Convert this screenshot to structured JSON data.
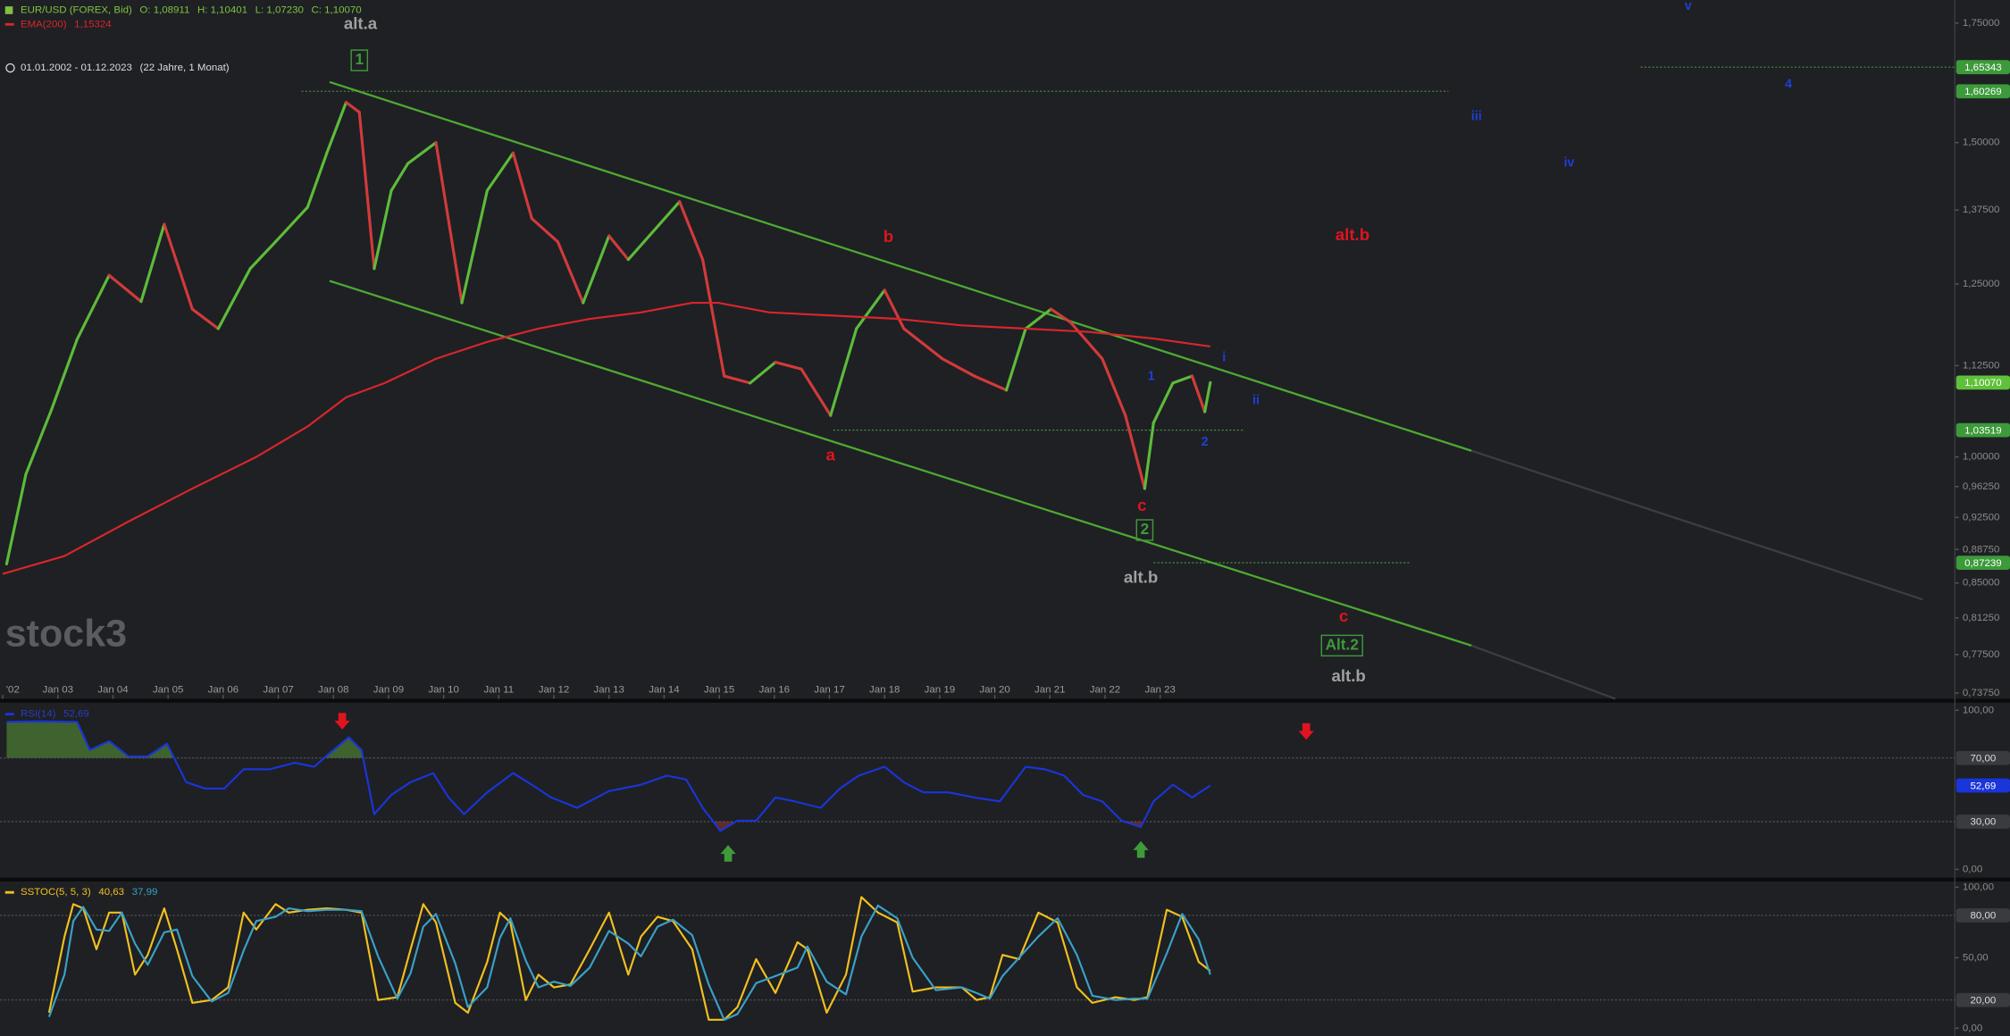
{
  "chart_data": [
    {
      "type": "line",
      "log": true,
      "instrument_ohlc": [
        "O: 1,08911",
        "H: 1,10401",
        "L: 1,07230",
        "C: 1,10070"
      ],
      "period": "01.01.2002 - 01.12.2023",
      "period_note": "(22 Jahre, 1 Monat)",
      "watermark": "stock3",
      "xlim": [
        2001.95,
        2037.42
      ],
      "xticks": [
        {
          "value": 2002,
          "label": "'02"
        },
        {
          "value": 2003,
          "label": "Jan 03"
        },
        {
          "value": 2004,
          "label": "Jan 04"
        },
        {
          "value": 2005,
          "label": "Jan 05"
        },
        {
          "value": 2006,
          "label": "Jan 06"
        },
        {
          "value": 2007,
          "label": "Jan 07"
        },
        {
          "value": 2008,
          "label": "Jan 08"
        },
        {
          "value": 2009,
          "label": "Jan 09"
        },
        {
          "value": 2010,
          "label": "Jan 10"
        },
        {
          "value": 2011,
          "label": "Jan 11"
        },
        {
          "value": 2012,
          "label": "Jan 12"
        },
        {
          "value": 2013,
          "label": "Jan 13"
        },
        {
          "value": 2014,
          "label": "Jan 14"
        },
        {
          "value": 2015,
          "label": "Jan 15"
        },
        {
          "value": 2016,
          "label": "Jan 16"
        },
        {
          "value": 2017,
          "label": "Jan 17"
        },
        {
          "value": 2018,
          "label": "Jan 18"
        },
        {
          "value": 2019,
          "label": "Jan 19"
        },
        {
          "value": 2020,
          "label": "Jan 20"
        },
        {
          "value": 2021,
          "label": "Jan 21"
        },
        {
          "value": 2022,
          "label": "Jan 22"
        },
        {
          "value": 2023,
          "label": "Jan 23"
        }
      ],
      "ylim": [
        0.732,
        1.803
      ],
      "yticks": [
        {
          "value": 1.75,
          "label": "1,75000"
        },
        {
          "value": 1.5,
          "label": "1,50000"
        },
        {
          "value": 1.375,
          "label": "1,37500"
        },
        {
          "value": 1.25,
          "label": "1,25000"
        },
        {
          "value": 1.125,
          "label": "1,12500"
        },
        {
          "value": 1.0,
          "label": "1,00000"
        },
        {
          "value": 0.9625,
          "label": "0,96250"
        },
        {
          "value": 0.925,
          "label": "0,92500"
        },
        {
          "value": 0.8875,
          "label": "0,88750"
        },
        {
          "value": 0.85,
          "label": "0,85000"
        },
        {
          "value": 0.8125,
          "label": "0,81250"
        },
        {
          "value": 0.775,
          "label": "0,77500"
        },
        {
          "value": 0.7375,
          "label": "0,73750"
        }
      ],
      "series": [
        {
          "name": "EUR/USD (FOREX, Bid)",
          "color": "#7fc241",
          "up_color": "#5dbb3a",
          "down_color": "#d23a3a",
          "x": [
            2002.07,
            2002.42,
            2002.88,
            2003.35,
            2003.93,
            2004.51,
            2004.93,
            2005.44,
            2005.91,
            2006.49,
            2006.95,
            2007.53,
            2007.88,
            2008.23,
            2008.47,
            2008.74,
            2009.05,
            2009.35,
            2009.86,
            2010.33,
            2010.79,
            2011.26,
            2011.6,
            2012.07,
            2012.53,
            2013.0,
            2013.35,
            2014.28,
            2014.7,
            2015.09,
            2015.56,
            2016.02,
            2016.49,
            2017.02,
            2017.49,
            2018.0,
            2018.35,
            2019.05,
            2019.63,
            2020.21,
            2020.56,
            2021.02,
            2021.37,
            2021.95,
            2022.37,
            2022.72,
            2022.88,
            2023.23,
            2023.58,
            2023.81,
            2023.91
          ],
          "values": [
            0.871,
            0.978,
            1.062,
            1.164,
            1.264,
            1.222,
            1.35,
            1.21,
            1.18,
            1.275,
            1.32,
            1.38,
            1.48,
            1.58,
            1.56,
            1.275,
            1.41,
            1.46,
            1.5,
            1.22,
            1.41,
            1.48,
            1.36,
            1.32,
            1.22,
            1.33,
            1.29,
            1.39,
            1.29,
            1.11,
            1.1,
            1.13,
            1.12,
            1.055,
            1.18,
            1.24,
            1.18,
            1.135,
            1.11,
            1.09,
            1.18,
            1.21,
            1.19,
            1.135,
            1.055,
            0.96,
            1.045,
            1.1,
            1.11,
            1.06,
            1.1007
          ]
        },
        {
          "name": "EMA(200)",
          "legend_value": "1,15324",
          "color": "#d8262b",
          "x": [
            2002.0,
            2003.12,
            2004.28,
            2005.44,
            2006.6,
            2007.53,
            2008.23,
            2008.93,
            2009.86,
            2010.79,
            2011.72,
            2012.65,
            2013.58,
            2014.51,
            2014.98,
            2015.91,
            2017.07,
            2018.23,
            2019.4,
            2020.56,
            2021.72,
            2022.88,
            2023.91
          ],
          "values": [
            0.86,
            0.88,
            0.92,
            0.96,
            1.0,
            1.04,
            1.08,
            1.1,
            1.135,
            1.16,
            1.18,
            1.195,
            1.205,
            1.22,
            1.22,
            1.205,
            1.2,
            1.195,
            1.185,
            1.18,
            1.175,
            1.165,
            1.15324
          ]
        }
      ],
      "level_color": "#3c9a3a",
      "level_text_color": "#ffffff",
      "level_line_color": "#4f8a3a",
      "levels": [
        {
          "value": 1.65343,
          "label": "1,65343",
          "from": 2031.72
        },
        {
          "value": 1.60269,
          "label": "1,60269",
          "from": 2007.42,
          "to": 2028.23
        },
        {
          "value": 1.03519,
          "label": "1,03519",
          "from": 2017.07,
          "to": 2024.5
        },
        {
          "value": 0.87239,
          "label": "0,87239",
          "from": 2022.88,
          "to": 2027.53
        }
      ],
      "last": {
        "value": 1.1007,
        "label": "1,10070"
      },
      "last_color": "#5fc13a",
      "trendlines": [
        {
          "x": [
            2007.93,
            2028.65
          ],
          "y": [
            1.622,
            1.008
          ],
          "color": "#4ea832"
        },
        {
          "x": [
            2007.93,
            2028.65
          ],
          "y": [
            1.255,
            0.784
          ],
          "color": "#4ea832"
        },
        {
          "x": [
            2028.65,
            2036.84
          ],
          "y": [
            1.008,
            0.832
          ],
          "color": "#3a3d42"
        },
        {
          "x": [
            2028.65,
            2031.26
          ],
          "y": [
            0.784,
            0.732
          ],
          "color": "#3a3d42"
        }
      ],
      "annotations": [
        {
          "text": "alt.a",
          "x": 2008.49,
          "y": 1.747,
          "color": "#a0a0a0"
        },
        {
          "text": "1",
          "x": 2008.47,
          "y": 1.668,
          "color": "#3f9a3a",
          "box": true
        },
        {
          "text": "b",
          "x": 2018.07,
          "y": 1.327,
          "color": "#e0141e"
        },
        {
          "text": "alt.b",
          "x": 2026.49,
          "y": 1.33,
          "color": "#e0141e"
        },
        {
          "text": "a",
          "x": 2017.02,
          "y": 1.001,
          "color": "#e0141e"
        },
        {
          "text": "1",
          "x": 2022.84,
          "y": 1.109,
          "color": "#1f3fd6"
        },
        {
          "text": "2",
          "x": 2023.81,
          "y": 1.019,
          "color": "#1f3fd6"
        },
        {
          "text": "i",
          "x": 2024.16,
          "y": 1.136,
          "color": "#1f3fd6"
        },
        {
          "text": "ii",
          "x": 2024.74,
          "y": 1.075,
          "color": "#1f3fd6"
        },
        {
          "text": "c",
          "x": 2022.67,
          "y": 0.938,
          "color": "#e0141e"
        },
        {
          "text": "2",
          "x": 2022.72,
          "y": 0.91,
          "color": "#3f9a3a",
          "box": true
        },
        {
          "text": "alt.b",
          "x": 2022.65,
          "y": 0.855,
          "color": "#a0a0a0"
        },
        {
          "text": "c",
          "x": 2026.33,
          "y": 0.813,
          "color": "#e0141e"
        },
        {
          "text": "Alt.2",
          "x": 2026.3,
          "y": 0.784,
          "color": "#3f9a3a",
          "box": true
        },
        {
          "text": "alt.b",
          "x": 2026.42,
          "y": 0.753,
          "color": "#a0a0a0"
        },
        {
          "text": "iii",
          "x": 2028.74,
          "y": 1.551,
          "color": "#1f3fd6"
        },
        {
          "text": "iv",
          "x": 2030.42,
          "y": 1.461,
          "color": "#1f3fd6"
        },
        {
          "text": "v",
          "x": 2032.58,
          "y": 1.788,
          "color": "#1f3fd6"
        },
        {
          "text": "4",
          "x": 2034.4,
          "y": 1.617,
          "color": "#1f3fd6"
        }
      ]
    },
    {
      "type": "line",
      "xlim": [
        2001.95,
        2037.42
      ],
      "ylim": [
        -5.6,
        104.8
      ],
      "yticks": [
        {
          "value": 100,
          "label": "100,00"
        },
        {
          "value": 0,
          "label": "0,00"
        }
      ],
      "level_color": "#3a3b3f",
      "level_text_color": "#dddddd",
      "level_line_color": "#55575c",
      "levels": [
        {
          "value": 70,
          "label": "70,00",
          "fill": "#4a7a32",
          "side": "above"
        },
        {
          "value": 30,
          "label": "30,00",
          "fill": "#7a2e2e",
          "side": "below"
        }
      ],
      "last": {
        "value": 52.69,
        "label": "52,69"
      },
      "last_color": "#1a35d8",
      "series": [
        {
          "name": "RSI(14)",
          "legend_value": "52,69",
          "color": "#1a35d8",
          "x": [
            2002.07,
            2002.65,
            2003.35,
            2003.58,
            2003.93,
            2004.28,
            2004.63,
            2004.98,
            2005.33,
            2005.67,
            2006.02,
            2006.37,
            2006.84,
            2007.3,
            2007.65,
            2008.0,
            2008.28,
            2008.51,
            2008.74,
            2009.05,
            2009.4,
            2009.81,
            2010.09,
            2010.37,
            2010.79,
            2011.26,
            2011.6,
            2011.95,
            2012.42,
            2013.0,
            2013.58,
            2014.05,
            2014.4,
            2014.7,
            2015.02,
            2015.33,
            2015.67,
            2016.02,
            2016.37,
            2016.84,
            2017.19,
            2017.53,
            2018.0,
            2018.35,
            2018.7,
            2019.16,
            2019.63,
            2020.09,
            2020.56,
            2020.91,
            2021.26,
            2021.6,
            2021.95,
            2022.3,
            2022.65,
            2022.88,
            2023.23,
            2023.58,
            2023.91
          ],
          "values": [
            92.7,
            93,
            92.7,
            75,
            80.6,
            71,
            71,
            79,
            54.8,
            50.8,
            50.8,
            62.9,
            62.9,
            67,
            64.5,
            75,
            83,
            75,
            34.7,
            46.8,
            54.8,
            60.5,
            45.2,
            34.7,
            48.4,
            60.5,
            53.2,
            45.2,
            38.7,
            49.2,
            53.2,
            58.9,
            56.5,
            38.7,
            24.2,
            30.6,
            30.6,
            45.2,
            42.7,
            38.7,
            50.8,
            58.9,
            64.5,
            54.8,
            48.4,
            48.4,
            45.2,
            42.7,
            64.5,
            62.9,
            58.9,
            46.8,
            42.7,
            30.6,
            26.6,
            42.7,
            53.2,
            45.2,
            52.69
          ]
        }
      ]
    },
    {
      "type": "line",
      "xlim": [
        2001.95,
        2037.42
      ],
      "ylim": [
        -5.5,
        104.5
      ],
      "yticks": [
        {
          "value": 100,
          "label": "100,00"
        },
        {
          "value": 50,
          "label": "50,00"
        },
        {
          "value": 0,
          "label": "0,00"
        }
      ],
      "level_color": "#3a3b3f",
      "level_text_color": "#dddddd",
      "level_line_color": "#55575c",
      "levels": [
        {
          "value": 80,
          "label": "80,00"
        },
        {
          "value": 20,
          "label": "20,00"
        }
      ],
      "x": [
        2002.84,
        2003.12,
        2003.28,
        2003.46,
        2003.7,
        2003.93,
        2004.16,
        2004.4,
        2004.63,
        2004.93,
        2005.16,
        2005.44,
        2005.79,
        2006.09,
        2006.37,
        2006.6,
        2006.95,
        2007.19,
        2007.53,
        2007.88,
        2008.23,
        2008.51,
        2008.81,
        2009.16,
        2009.4,
        2009.63,
        2009.86,
        2010.21,
        2010.44,
        2010.79,
        2011.02,
        2011.21,
        2011.49,
        2011.72,
        2012.0,
        2012.3,
        2012.65,
        2013.0,
        2013.35,
        2013.58,
        2013.88,
        2014.16,
        2014.51,
        2014.81,
        2015.09,
        2015.33,
        2015.67,
        2016.02,
        2016.42,
        2016.6,
        2016.95,
        2017.3,
        2017.58,
        2017.88,
        2018.23,
        2018.51,
        2018.93,
        2019.4,
        2019.67,
        2019.91,
        2020.14,
        2020.44,
        2020.79,
        2021.14,
        2021.49,
        2021.77,
        2022.19,
        2022.53,
        2022.77,
        2023.12,
        2023.4,
        2023.7,
        2023.91
      ],
      "series": [
        {
          "name": "SSTOC(5, 5, 3)",
          "legend_value": "40,63",
          "color": "#f2c01e",
          "values": [
            11,
            65,
            88,
            85,
            56,
            82,
            82,
            38,
            52,
            85,
            56,
            18,
            20,
            29,
            82,
            70,
            88,
            82,
            84,
            85,
            84,
            82,
            20,
            22,
            56,
            88,
            75,
            18,
            11,
            47,
            82,
            75,
            20,
            38,
            29,
            31,
            56,
            82,
            38,
            65,
            79,
            76,
            56,
            6,
            6,
            15,
            49,
            25,
            61,
            56,
            11,
            38,
            93,
            82,
            75,
            26,
            29,
            29,
            20,
            22,
            52,
            49,
            82,
            75,
            29,
            18,
            22,
            20,
            22,
            84,
            79,
            47,
            40.63
          ]
        },
        {
          "legend_value": "37,99",
          "color": "#3aa0c8",
          "values": [
            8,
            38,
            76,
            86,
            70,
            69,
            82,
            60,
            45,
            68,
            70,
            37,
            19,
            25,
            55,
            76,
            79,
            85,
            83,
            84,
            84,
            83,
            51,
            21,
            39,
            72,
            81,
            46,
            15,
            29,
            64,
            78,
            48,
            29,
            33,
            30,
            43,
            69,
            60,
            51,
            72,
            77,
            66,
            31,
            6,
            10,
            32,
            37,
            43,
            58,
            33,
            24,
            65,
            87,
            78,
            50,
            27,
            29,
            25,
            21,
            37,
            50,
            65,
            78,
            52,
            23,
            20,
            21,
            21,
            53,
            81,
            63,
            37.99
          ]
        }
      ]
    }
  ]
}
